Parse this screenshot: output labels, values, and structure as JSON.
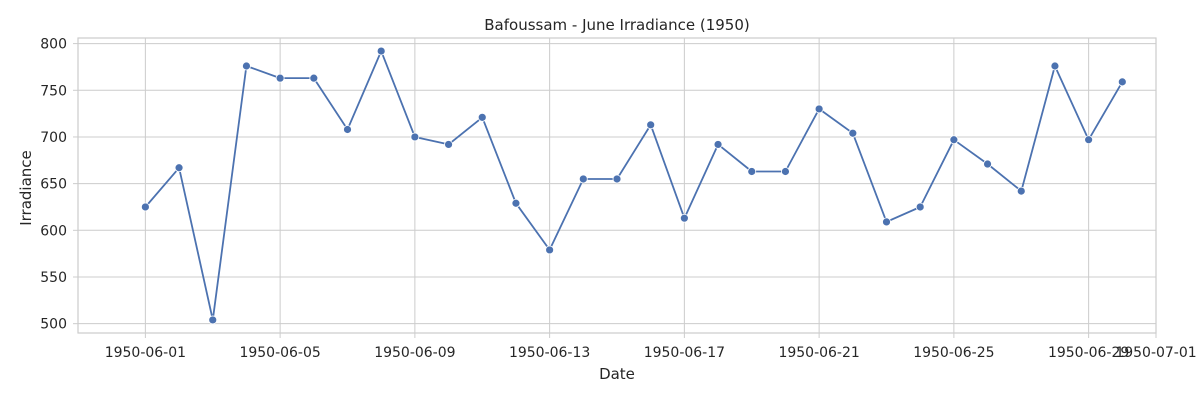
{
  "chart_data": {
    "type": "line",
    "title": "Bafoussam - June Irradiance (1950)",
    "xlabel": "Date",
    "ylabel": "Irradiance",
    "x": [
      "1950-06-01",
      "1950-06-02",
      "1950-06-03",
      "1950-06-04",
      "1950-06-05",
      "1950-06-06",
      "1950-06-07",
      "1950-06-08",
      "1950-06-09",
      "1950-06-10",
      "1950-06-11",
      "1950-06-12",
      "1950-06-13",
      "1950-06-14",
      "1950-06-15",
      "1950-06-16",
      "1950-06-17",
      "1950-06-18",
      "1950-06-19",
      "1950-06-20",
      "1950-06-21",
      "1950-06-22",
      "1950-06-23",
      "1950-06-24",
      "1950-06-25",
      "1950-06-26",
      "1950-06-27",
      "1950-06-28",
      "1950-06-29",
      "1950-06-30"
    ],
    "series": [
      {
        "values": [
          625,
          667,
          504,
          776,
          763,
          763,
          708,
          792,
          700,
          692,
          721,
          629,
          579,
          655,
          655,
          713,
          613,
          692,
          663,
          663,
          730,
          704,
          609,
          625,
          697,
          671,
          642,
          776,
          697,
          759
        ],
        "color": "#4c72b0"
      }
    ],
    "xticks": [
      "1950-06-01",
      "1950-06-05",
      "1950-06-09",
      "1950-06-13",
      "1950-06-17",
      "1950-06-21",
      "1950-06-25",
      "1950-06-29",
      "1950-07-01"
    ],
    "yticks": [
      500,
      550,
      600,
      650,
      700,
      750,
      800
    ],
    "xlim": [
      "1950-05-30",
      "1950-07-01"
    ],
    "ylim": [
      490,
      806
    ],
    "grid": true,
    "legend": "none"
  }
}
